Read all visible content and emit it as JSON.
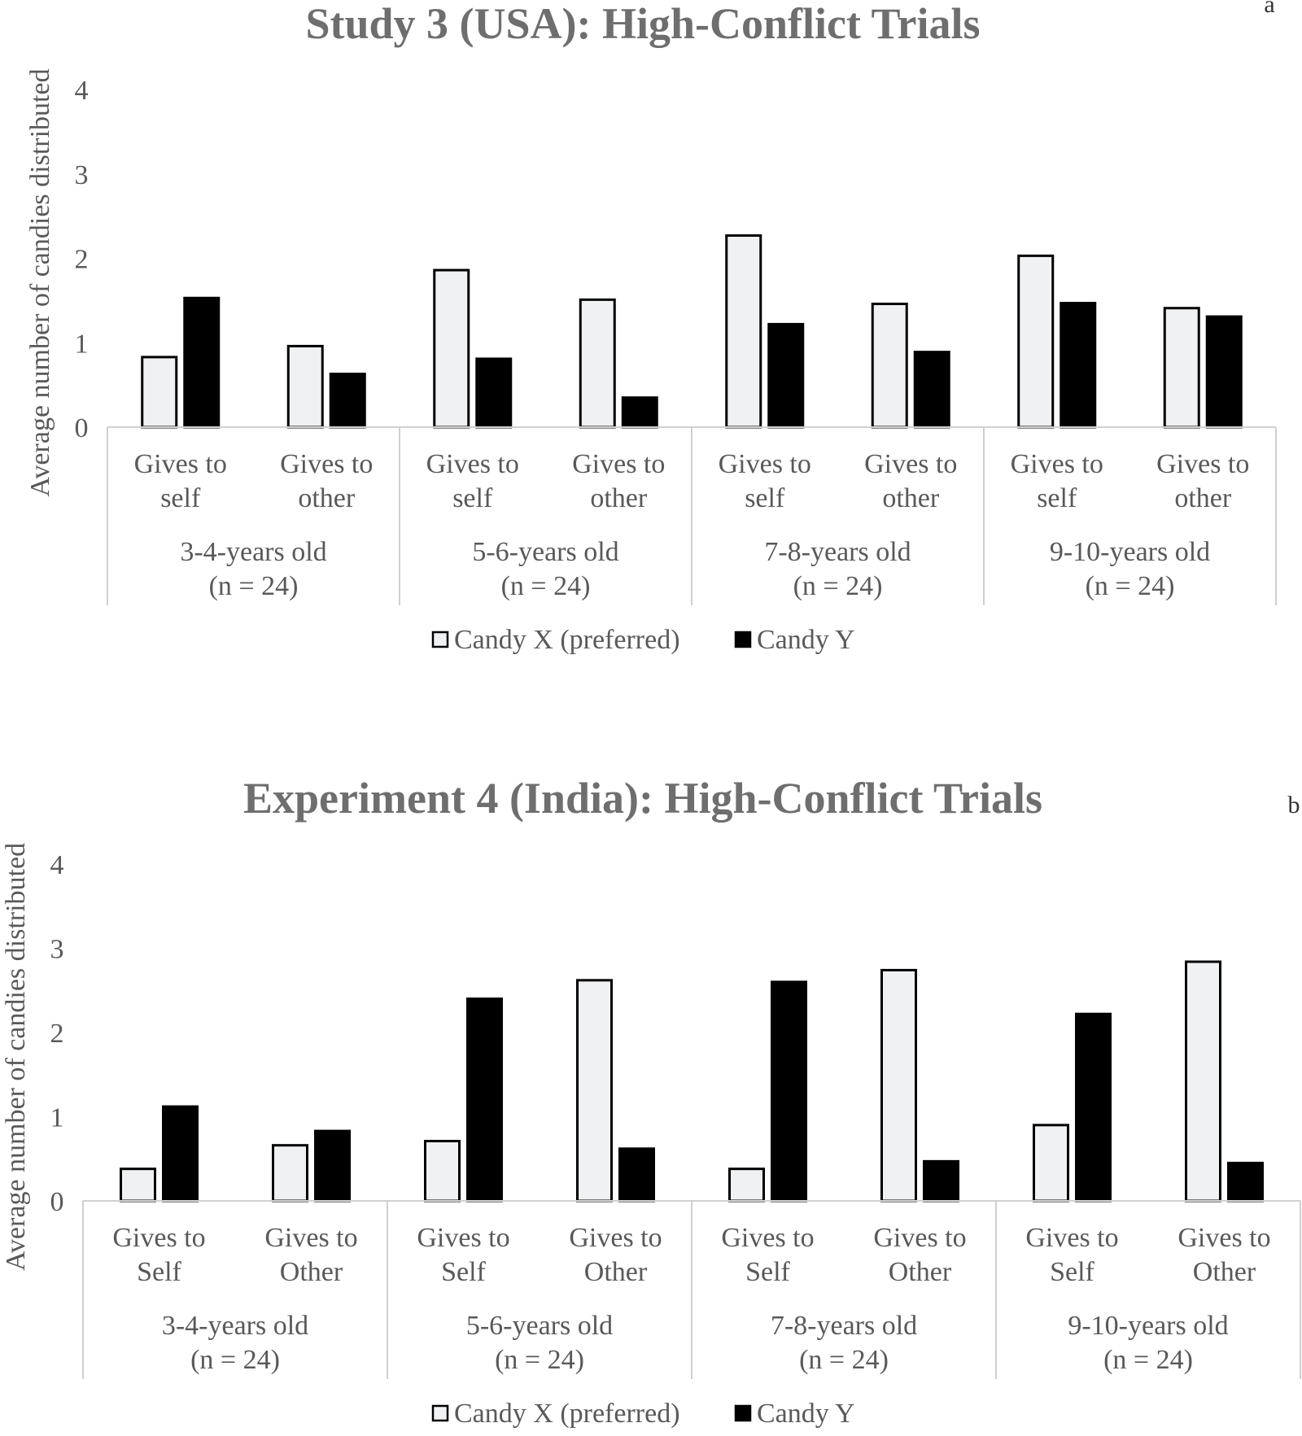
{
  "chart_data": [
    {
      "type": "bar",
      "panel_letter": "a",
      "title": "Study 3 (USA): High-Conflict Trials",
      "ylabel": "Average number of candies distributed",
      "ylim": [
        0,
        4
      ],
      "yticks": [
        "0",
        "1",
        "2",
        "3",
        "4"
      ],
      "categories": [
        {
          "label": [
            "Gives to",
            "self"
          ],
          "group": 0
        },
        {
          "label": [
            "Gives to",
            "other"
          ],
          "group": 0
        },
        {
          "label": [
            "Gives to",
            "self"
          ],
          "group": 1
        },
        {
          "label": [
            "Gives to",
            "other"
          ],
          "group": 1
        },
        {
          "label": [
            "Gives to",
            "self"
          ],
          "group": 2
        },
        {
          "label": [
            "Gives to",
            "other"
          ],
          "group": 2
        },
        {
          "label": [
            "Gives to",
            "self"
          ],
          "group": 3
        },
        {
          "label": [
            "Gives to",
            "other"
          ],
          "group": 3
        }
      ],
      "groups": [
        [
          "3-4-years old",
          "(n = 24)"
        ],
        [
          "5-6-years old",
          "(n = 24)"
        ],
        [
          "7-8-years old",
          "(n = 24)"
        ],
        [
          "9-10-years old",
          "(n = 24)"
        ]
      ],
      "series": [
        {
          "name": "Candy X (preferred)",
          "color": "#f0f1f2",
          "values": [
            0.83,
            0.96,
            1.86,
            1.51,
            2.27,
            1.46,
            2.03,
            1.41
          ]
        },
        {
          "name": "Candy Y",
          "color": "#000000",
          "values": [
            1.53,
            0.63,
            0.81,
            0.35,
            1.22,
            0.89,
            1.47,
            1.31
          ]
        }
      ],
      "legend": "bottom"
    },
    {
      "type": "bar",
      "panel_letter": "b",
      "title": "Experiment 4 (India): High-Conflict Trials",
      "ylabel": "Average number of candies distributed",
      "ylim": [
        0,
        4
      ],
      "yticks": [
        "0",
        "1",
        "2",
        "3",
        "4"
      ],
      "categories": [
        {
          "label": [
            "Gives to",
            "Self"
          ],
          "group": 0
        },
        {
          "label": [
            "Gives to",
            "Other"
          ],
          "group": 0
        },
        {
          "label": [
            "Gives to",
            "Self"
          ],
          "group": 1
        },
        {
          "label": [
            "Gives to",
            "Other"
          ],
          "group": 1
        },
        {
          "label": [
            "Gives to",
            "Self"
          ],
          "group": 2
        },
        {
          "label": [
            "Gives to",
            "Other"
          ],
          "group": 2
        },
        {
          "label": [
            "Gives to",
            "Self"
          ],
          "group": 3
        },
        {
          "label": [
            "Gives to",
            "Other"
          ],
          "group": 3
        }
      ],
      "groups": [
        [
          "3-4-years old",
          "(n = 24)"
        ],
        [
          "5-6-years old",
          "(n = 24)"
        ],
        [
          "7-8-years old",
          "(n = 24)"
        ],
        [
          "9-10-years old",
          "(n = 24)"
        ]
      ],
      "series": [
        {
          "name": "Candy X (preferred)",
          "color": "#f0f1f2",
          "values": [
            0.38,
            0.66,
            0.71,
            2.62,
            0.38,
            2.74,
            0.9,
            2.84
          ]
        },
        {
          "name": "Candy Y",
          "color": "#000000",
          "values": [
            1.12,
            0.83,
            2.4,
            0.62,
            2.6,
            0.47,
            2.22,
            0.45
          ]
        }
      ],
      "legend": "bottom"
    }
  ]
}
